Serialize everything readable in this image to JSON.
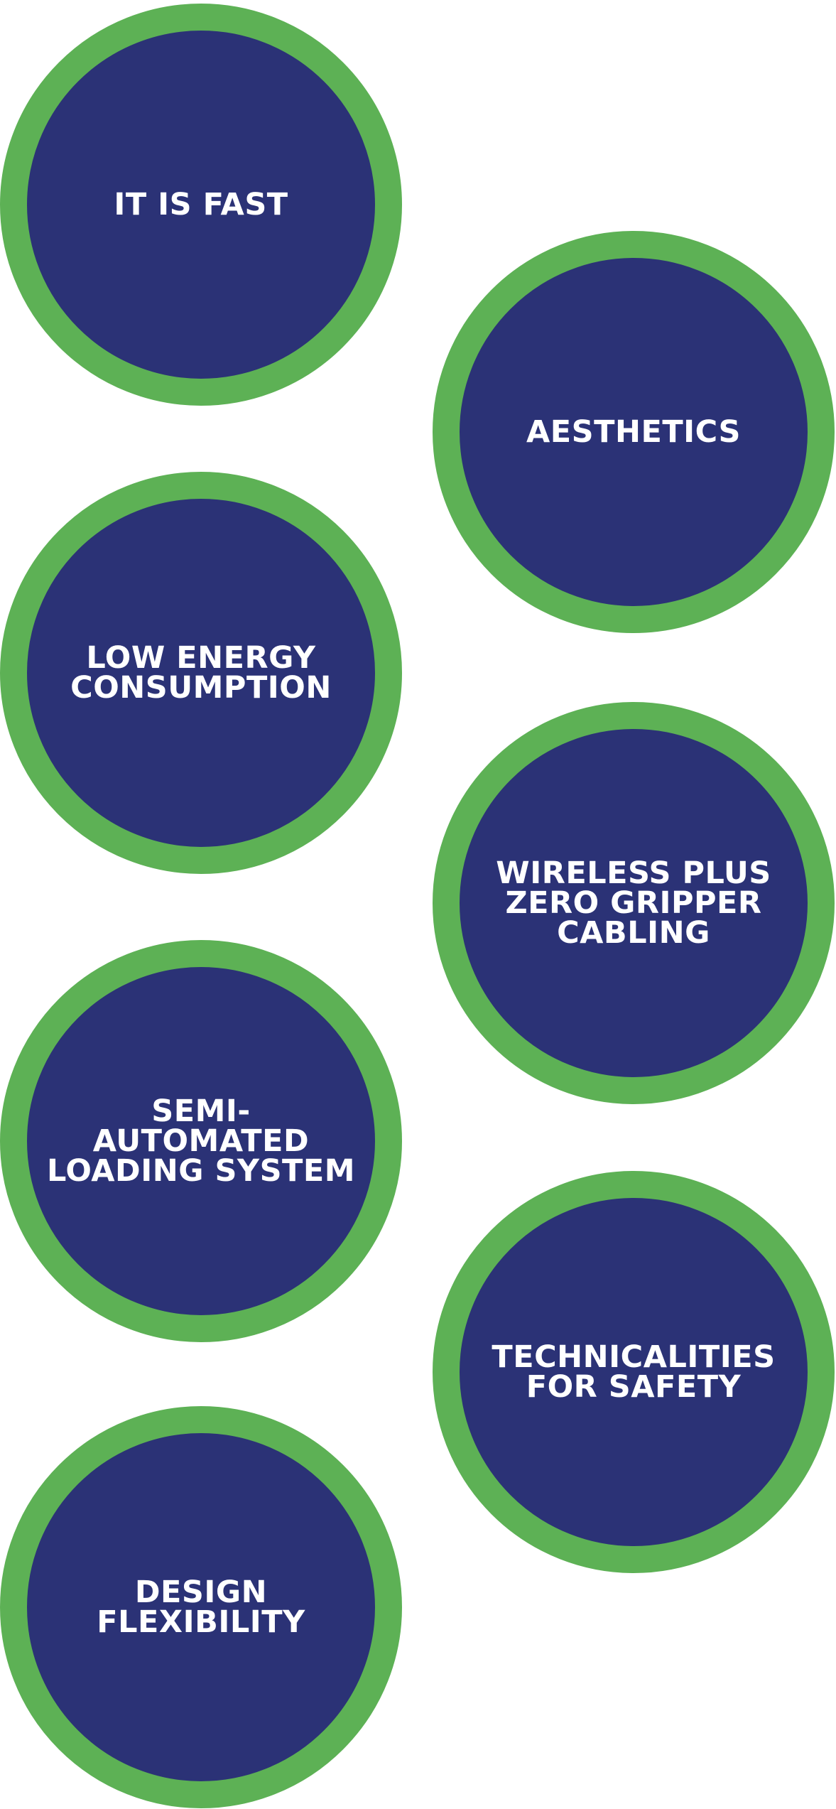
{
  "colors": {
    "ring": "#5db155",
    "fill": "#2b3276",
    "text": "#ffffff",
    "background": "#ffffff"
  },
  "features": [
    {
      "label": "IT IS FAST"
    },
    {
      "label": "AESTHETICS"
    },
    {
      "label": "LOW ENERGY\nCONSUMPTION"
    },
    {
      "label": "WIRELESS PLUS\nZERO GRIPPER\nCABLING"
    },
    {
      "label": "SEMI-AUTOMATED\nLOADING SYSTEM"
    },
    {
      "label": "TECHNICALITIES\nFOR SAFETY"
    },
    {
      "label": "DESIGN\nFLEXIBILITY"
    }
  ]
}
